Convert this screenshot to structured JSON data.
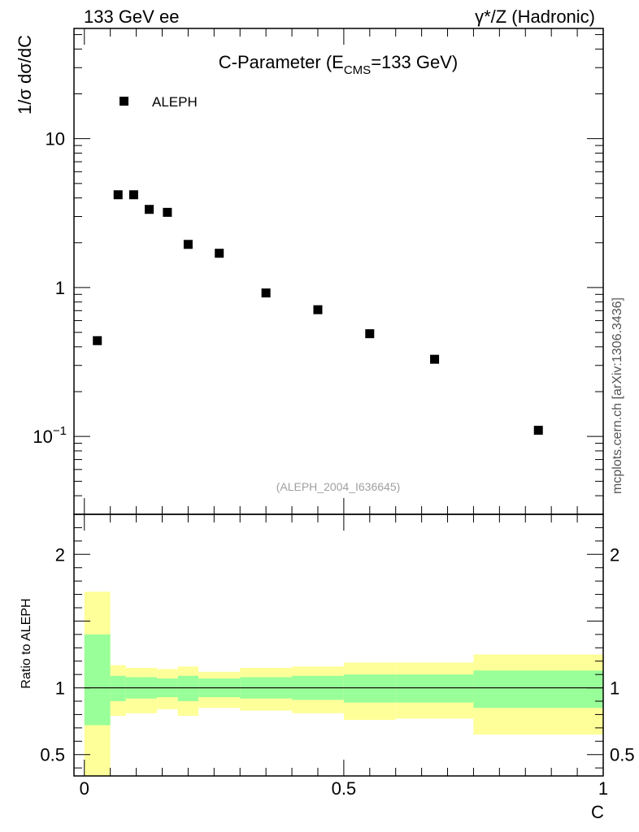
{
  "header": {
    "left_label": "133 GeV ee",
    "right_label": "γ*/Z (Hadronic)"
  },
  "watermark": "mcplots.cern.ch [arXiv:1306.3436]",
  "chart_data": [
    {
      "type": "scatter",
      "panel": "main",
      "title": "C-Parameter (E",
      "title_sub": "CMS",
      "title_tail": "=133 GeV)",
      "ylabel": "1/σ  dσ/dC",
      "yscale": "log",
      "ylim": [
        0.03,
        55
      ],
      "xlim": [
        -0.02,
        1.0
      ],
      "yticks": [
        {
          "value": 10,
          "label": "10"
        },
        {
          "value": 1,
          "label": "1"
        },
        {
          "value": 0.1,
          "label": "10",
          "exp": "−1"
        }
      ],
      "legend": {
        "label": "ALEPH",
        "position": "top-left"
      },
      "analysis_label": "(ALEPH_2004_I636645)",
      "series": [
        {
          "name": "ALEPH",
          "x": [
            0.025,
            0.065,
            0.095,
            0.125,
            0.16,
            0.2,
            0.26,
            0.35,
            0.45,
            0.55,
            0.675,
            0.875
          ],
          "y": [
            0.44,
            4.2,
            4.2,
            3.35,
            3.2,
            1.95,
            1.7,
            0.92,
            0.71,
            0.49,
            0.33,
            0.11
          ]
        }
      ]
    },
    {
      "type": "area",
      "panel": "ratio",
      "ylabel": "Ratio to ALEPH",
      "xlabel": "C",
      "ylim": [
        0.34,
        2.3
      ],
      "xlim": [
        -0.02,
        1.0
      ],
      "yticks": [
        {
          "value": 2,
          "label": "2"
        },
        {
          "value": 1,
          "label": "1"
        },
        {
          "value": 0.5,
          "label": "0.5"
        }
      ],
      "xticks": [
        {
          "value": 0,
          "label": "0"
        },
        {
          "value": 0.5,
          "label": "0.5"
        },
        {
          "value": 1,
          "label": "1"
        }
      ],
      "reference_line": 1,
      "bins": [
        {
          "lo": 0.0,
          "hi": 0.05,
          "stat": [
            0.72,
            1.4
          ],
          "total": [
            0.0,
            1.72
          ]
        },
        {
          "lo": 0.05,
          "hi": 0.08,
          "stat": [
            0.9,
            1.09
          ],
          "total": [
            0.79,
            1.17
          ]
        },
        {
          "lo": 0.08,
          "hi": 0.11,
          "stat": [
            0.92,
            1.08
          ],
          "total": [
            0.81,
            1.15
          ]
        },
        {
          "lo": 0.11,
          "hi": 0.14,
          "stat": [
            0.92,
            1.08
          ],
          "total": [
            0.81,
            1.15
          ]
        },
        {
          "lo": 0.14,
          "hi": 0.18,
          "stat": [
            0.93,
            1.07
          ],
          "total": [
            0.84,
            1.14
          ]
        },
        {
          "lo": 0.18,
          "hi": 0.22,
          "stat": [
            0.9,
            1.09
          ],
          "total": [
            0.79,
            1.16
          ]
        },
        {
          "lo": 0.22,
          "hi": 0.3,
          "stat": [
            0.93,
            1.07
          ],
          "total": [
            0.85,
            1.12
          ]
        },
        {
          "lo": 0.3,
          "hi": 0.4,
          "stat": [
            0.92,
            1.08
          ],
          "total": [
            0.83,
            1.15
          ]
        },
        {
          "lo": 0.4,
          "hi": 0.5,
          "stat": [
            0.91,
            1.09
          ],
          "total": [
            0.81,
            1.16
          ]
        },
        {
          "lo": 0.5,
          "hi": 0.6,
          "stat": [
            0.89,
            1.1
          ],
          "total": [
            0.76,
            1.19
          ]
        },
        {
          "lo": 0.6,
          "hi": 0.75,
          "stat": [
            0.89,
            1.1
          ],
          "total": [
            0.77,
            1.19
          ]
        },
        {
          "lo": 0.75,
          "hi": 1.0,
          "stat": [
            0.85,
            1.13
          ],
          "total": [
            0.65,
            1.25
          ]
        }
      ]
    }
  ],
  "colors": {
    "stat_band": "#99ff99",
    "total_band": "#ffff99",
    "marker": "#000000",
    "axis": "#000000",
    "analysis_label": "#a0a0a0"
  }
}
